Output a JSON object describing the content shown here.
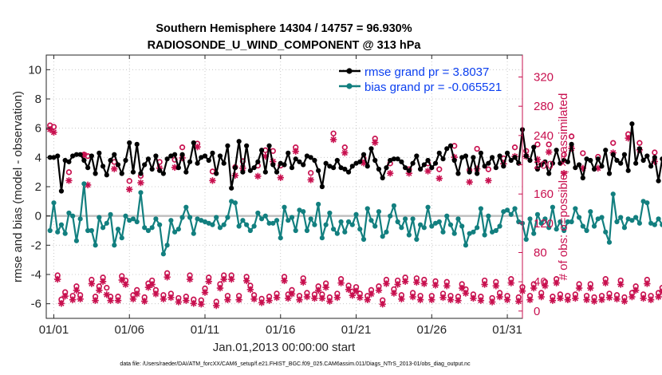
{
  "chart_data": {
    "type": "line",
    "title_line1": "Southern Hemisphere 14304 / 14757 = 96.930%",
    "title_line2": "RADIOSONDE_U_WIND_COMPONENT @ 313 hPa",
    "xlabel": "Jan.01,2013 00:00:00 start",
    "ylabel": "rmse and bias (model - observation)",
    "ylabel_right": "# of obs: o=possible; ×=assimilated",
    "footnote": "data file: /Users/raeder/DAI/ATM_forcXX/CAM6_setup/f.e21.FHIST_BGC.f09_025.CAM6assim.011/Diags_NTrS_2013-01/obs_diag_output.nc",
    "xlim": [
      0.5,
      32.0
    ],
    "ylim": [
      -7,
      11
    ],
    "ylim_right": [
      -10,
      350
    ],
    "x_ticks": [
      1,
      6,
      11,
      16,
      21,
      26,
      31
    ],
    "x_tick_labels": [
      "01/01",
      "01/06",
      "01/11",
      "01/16",
      "01/21",
      "01/26",
      "01/31"
    ],
    "y_ticks": [
      -6,
      -4,
      -2,
      0,
      2,
      4,
      6,
      8,
      10
    ],
    "y_tick_labels": [
      "-6",
      "-4",
      "-2",
      "0",
      "2",
      "4",
      "6",
      "8",
      "10"
    ],
    "y_ticks_right": [
      0,
      40,
      80,
      120,
      160,
      200,
      240,
      280,
      320
    ],
    "y_tick_labels_right": [
      "0",
      "40",
      "80",
      "120",
      "160",
      "200",
      "240",
      "280",
      "320"
    ],
    "x_start": 0.75,
    "x_step": 0.25,
    "series": [
      {
        "name": "rmse grand pr = 3.8037",
        "color": "#000000",
        "values": [
          4.0,
          4.0,
          4.1,
          1.7,
          3.8,
          3.7,
          4.1,
          4.2,
          4.2,
          3.8,
          3.3,
          4.1,
          2.9,
          4.3,
          3.4,
          2.8,
          3.8,
          4.2,
          3.5,
          2.9,
          3.8,
          5.0,
          3.0,
          4.9,
          2.9,
          3.5,
          3.9,
          3.2,
          4.1,
          3.1,
          2.9,
          3.9,
          4.1,
          4.2,
          3.3,
          4.2,
          3.0,
          3.7,
          5.0,
          3.6,
          4.0,
          4.1,
          3.8,
          4.3,
          2.9,
          4.1,
          3.6,
          4.8,
          1.9,
          3.3,
          5.1,
          3.0,
          4.8,
          3.1,
          3.3,
          3.7,
          4.5,
          3.0,
          4.8,
          3.5,
          3.0,
          3.6,
          3.5,
          4.3,
          3.3,
          3.9,
          3.7,
          3.5,
          4.1,
          4.0,
          3.8,
          3.1,
          2.0,
          3.6,
          3.4,
          3.3,
          3.8,
          3.3,
          3.2,
          3.0,
          3.4,
          3.6,
          3.7,
          4.2,
          3.4,
          4.6,
          3.8,
          3.2,
          2.6,
          3.3,
          3.8,
          3.9,
          3.9,
          3.7,
          3.3,
          3.1,
          3.6,
          4.1,
          3.2,
          3.5,
          3.8,
          3.3,
          3.6,
          4.3,
          3.9,
          4.6,
          4.8,
          3.8,
          2.9,
          4.0,
          4.1,
          3.0,
          4.0,
          2.9,
          4.3,
          3.4,
          3.6,
          4.0,
          3.3,
          4.1,
          3.4,
          4.3,
          3.8,
          4.0,
          3.6,
          5.9,
          4.1,
          3.8,
          4.7,
          3.2,
          3.5,
          3.7,
          2.9,
          3.6,
          4.5,
          3.6,
          3.8,
          3.7,
          4.9,
          3.3,
          3.5,
          2.6,
          3.9,
          3.8,
          3.2,
          3.9,
          3.4,
          4.5,
          2.9,
          4.2,
          3.8,
          3.6,
          4.2,
          3.1,
          6.3,
          3.6,
          4.6,
          3.8,
          4.1,
          3.4,
          4.0,
          2.4,
          3.9,
          2.3,
          3.7,
          2.9,
          4.2,
          2.1,
          3.6,
          3.9,
          4.8,
          4.1,
          3.9,
          3.0
        ]
      },
      {
        "name": "bias grand pr = -0.065521",
        "color": "#127f7f",
        "values": [
          -1.0,
          0.9,
          -1.1,
          -0.6,
          -1.2,
          0.2,
          0.0,
          -1.7,
          -0.2,
          2.2,
          -1.0,
          -1.0,
          -2.0,
          -0.1,
          -0.8,
          -0.5,
          0.1,
          -2.0,
          -0.9,
          -1.5,
          0.0,
          -0.3,
          -0.2,
          -0.4,
          1.6,
          -0.8,
          -1.0,
          -0.8,
          -0.2,
          -0.6,
          -2.6,
          -2.0,
          -0.3,
          -1.1,
          -0.9,
          -0.1,
          0.6,
          -0.1,
          -1.2,
          -0.2,
          -0.3,
          -0.4,
          -0.5,
          -0.6,
          -0.1,
          -0.8,
          -0.6,
          -0.1,
          1.0,
          0.9,
          -0.7,
          -0.3,
          -0.6,
          -1.0,
          -0.7,
          0.2,
          -0.2,
          0.0,
          -0.5,
          -0.5,
          -0.3,
          -1.5,
          0.6,
          -0.3,
          -0.1,
          -1.0,
          0.4,
          0.3,
          -1.0,
          -0.2,
          -0.6,
          0.8,
          -1.5,
          -0.6,
          0.2,
          -0.9,
          -1.2,
          -0.4,
          -1.1,
          -0.4,
          -0.6,
          0.1,
          -0.9,
          -1.6,
          0.5,
          -0.3,
          -0.7,
          0.3,
          -1.4,
          -1.1,
          0.0,
          0.7,
          -0.4,
          -0.8,
          -0.2,
          -1.3,
          -0.2,
          -1.6,
          -0.6,
          -0.8,
          0.6,
          -0.7,
          -0.5,
          -0.4,
          -1.1,
          0.0,
          -0.6,
          -1.2,
          -0.2,
          -0.7,
          -2.0,
          -1.2,
          -1.1,
          -0.8,
          0.5,
          -1.3,
          0.0,
          -1.1,
          -1.0,
          -0.7,
          0.3,
          0.4,
          0.1,
          0.5,
          -0.4,
          -0.5,
          -1.6,
          -0.2,
          -1.2,
          0.1,
          -0.5,
          -0.2,
          -0.8,
          0.6,
          -0.9,
          -0.4,
          -1.0,
          -0.4,
          -0.4,
          0.5,
          -0.1,
          -0.7,
          -1.0,
          0.3,
          -0.7,
          -0.2,
          -0.1,
          -1.1,
          -1.8,
          1.5,
          -0.4,
          -0.1,
          -0.8,
          -0.2,
          -0.3,
          -0.1,
          -0.5,
          1.0,
          0.9,
          -0.5,
          -0.6,
          -0.2,
          -0.6,
          -0.4,
          -1.1,
          -0.3,
          -0.6,
          0.0,
          -0.1,
          -0.8,
          -0.6,
          -0.5,
          -0.8,
          0.0,
          0.6
        ]
      }
    ],
    "obs_possible": {
      "name": "possible",
      "marker": "o",
      "color": "#c8104f",
      "axis": "right",
      "values": [
        250,
        248,
        45,
        12,
        22,
        186,
        17,
        30,
        18,
        210,
        208,
        39,
        16,
        30,
        42,
        28,
        16,
        200,
        16,
        44,
        38,
        174,
        18,
        25,
        181,
        15,
        34,
        38,
        25,
        200,
        18,
        48,
        20,
        203,
        14,
        220,
        16,
        45,
        12,
        225,
        11,
        27,
        42,
        187,
        9,
        33,
        45,
        17,
        45,
        193,
        17,
        201,
        43,
        31,
        18,
        195,
        13,
        216,
        16,
        215,
        20,
        195,
        43,
        19,
        25,
        220,
        17,
        41,
        21,
        185,
        19,
        30,
        19,
        34,
        15,
        239,
        20,
        40,
        220,
        31,
        23,
        29,
        20,
        205,
        17,
        25,
        232,
        30,
        11,
        39,
        198,
        26,
        38,
        18,
        42,
        190,
        21,
        41,
        17,
        39,
        198,
        17,
        37,
        190,
        20,
        36,
        17,
        222,
        16,
        33,
        26,
        189,
        19,
        218,
        16,
        38,
        190,
        14,
        36,
        21,
        205,
        17,
        40,
        220,
        15,
        29,
        215,
        17,
        33,
        224,
        21,
        36,
        224,
        16,
        40,
        19,
        210,
        17,
        235,
        19,
        33,
        212,
        17,
        33,
        15,
        207,
        17,
        40,
        20,
        226,
        18,
        38,
        15,
        238,
        21,
        30,
        226,
        19,
        39,
        17,
        213,
        21,
        28,
        205,
        18,
        40,
        22,
        210,
        13,
        33,
        45,
        14,
        216,
        28,
        11,
        210
      ]
    },
    "obs_assimilated": {
      "name": "assimilated",
      "marker": "*",
      "color": "#c8104f",
      "axis": "right",
      "values": [
        250,
        246,
        45,
        12,
        22,
        180,
        17,
        30,
        18,
        215,
        174,
        39,
        16,
        30,
        42,
        24,
        16,
        196,
        16,
        44,
        38,
        168,
        18,
        25,
        177,
        15,
        34,
        38,
        25,
        197,
        18,
        48,
        20,
        198,
        14,
        211,
        16,
        45,
        12,
        226,
        11,
        27,
        42,
        180,
        9,
        33,
        45,
        17,
        45,
        187,
        17,
        197,
        43,
        31,
        18,
        186,
        13,
        213,
        16,
        206,
        20,
        184,
        43,
        19,
        25,
        220,
        17,
        41,
        21,
        181,
        19,
        30,
        19,
        34,
        15,
        236,
        20,
        40,
        218,
        31,
        23,
        29,
        20,
        204,
        17,
        25,
        232,
        30,
        11,
        39,
        190,
        26,
        38,
        18,
        42,
        190,
        21,
        41,
        17,
        39,
        193,
        17,
        37,
        183,
        20,
        36,
        17,
        212,
        16,
        33,
        26,
        178,
        19,
        196,
        16,
        38,
        180,
        14,
        36,
        21,
        203,
        17,
        40,
        213,
        15,
        29,
        213,
        17,
        33,
        209,
        21,
        36,
        219,
        16,
        40,
        19,
        190,
        17,
        224,
        19,
        33,
        197,
        17,
        33,
        15,
        197,
        17,
        40,
        20,
        218,
        18,
        38,
        15,
        238,
        21,
        30,
        222,
        19,
        39,
        17,
        206,
        21,
        28,
        195,
        18,
        40,
        22,
        200,
        13,
        33,
        45,
        14,
        199,
        28,
        11,
        0
      ]
    },
    "zero_line_color": "#c0c0c0"
  }
}
